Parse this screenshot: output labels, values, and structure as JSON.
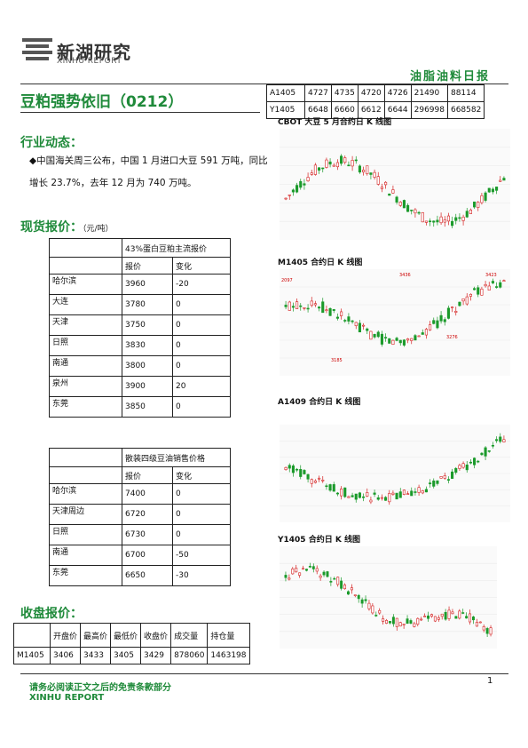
{
  "header": {
    "logo_cn": "新湖研究",
    "logo_en": "XINHU REPORT",
    "report_type": "油脂油料日报"
  },
  "title": "豆粕强势依旧（0212）",
  "futures_top": {
    "rows": [
      [
        "A1405",
        "4727",
        "4735",
        "4720",
        "4726",
        "21490",
        "88114"
      ],
      [
        "Y1405",
        "6648",
        "6660",
        "6612",
        "6644",
        "296998",
        "668582"
      ]
    ]
  },
  "industry": {
    "heading": "行业动态：",
    "text": "◆中国海关周三公布，中国 1 月进口大豆 591 万吨，同比增长 23.7%，去年 12 月为 740 万吨。"
  },
  "spot": {
    "heading": "现货报价：",
    "unit": "（元/吨）",
    "meal": {
      "header": "43%蛋白豆粕主流报价",
      "col_price": "报价",
      "col_change": "变化",
      "rows": [
        {
          "city": "哈尔滨",
          "price": "3960",
          "change": "-20"
        },
        {
          "city": "大连",
          "price": "3780",
          "change": "0"
        },
        {
          "city": "天津",
          "price": "3750",
          "change": "0"
        },
        {
          "city": "日照",
          "price": "3830",
          "change": "0"
        },
        {
          "city": "南通",
          "price": "3800",
          "change": "0"
        },
        {
          "city": "泉州",
          "price": "3900",
          "change": "20"
        },
        {
          "city": "东莞",
          "price": "3850",
          "change": "0"
        }
      ]
    },
    "oil": {
      "header": "散装四级豆油销售价格",
      "col_price": "报价",
      "col_change": "变化",
      "rows": [
        {
          "city": "哈尔滨",
          "price": "7400",
          "change": "0"
        },
        {
          "city": "天津周边",
          "price": "6720",
          "change": "0"
        },
        {
          "city": "日照",
          "price": "6730",
          "change": "0"
        },
        {
          "city": "南通",
          "price": "6700",
          "change": "-50"
        },
        {
          "city": "东莞",
          "price": "6650",
          "change": "-30"
        }
      ]
    }
  },
  "closing": {
    "heading": "收盘报价：",
    "headers": [
      "",
      "开盘价",
      "最高价",
      "最低价",
      "收盘价",
      "成交量",
      "持仓量"
    ],
    "rows": [
      [
        "M1405",
        "3406",
        "3433",
        "3405",
        "3429",
        "878060",
        "1463198"
      ]
    ]
  },
  "charts": {
    "c1": {
      "title": "CBOT 大豆 5 月合约日 K 线图"
    },
    "c2": {
      "title": "M1405 合约日 K 线图",
      "labels": [
        "2097",
        "3436",
        "3423",
        "3276",
        "3185"
      ]
    },
    "c3": {
      "title": "A1409 合约日 K 线图"
    },
    "c4": {
      "title": "Y1405 合约日 K 线图"
    }
  },
  "colors": {
    "up": "#d42020",
    "down": "#1a9a2a",
    "accent": "#1f8a3a"
  },
  "footer": {
    "disclaimer": "请务必阅读正文之后的免责条款部分",
    "brand": "XINHU REPORT",
    "page": "1"
  }
}
